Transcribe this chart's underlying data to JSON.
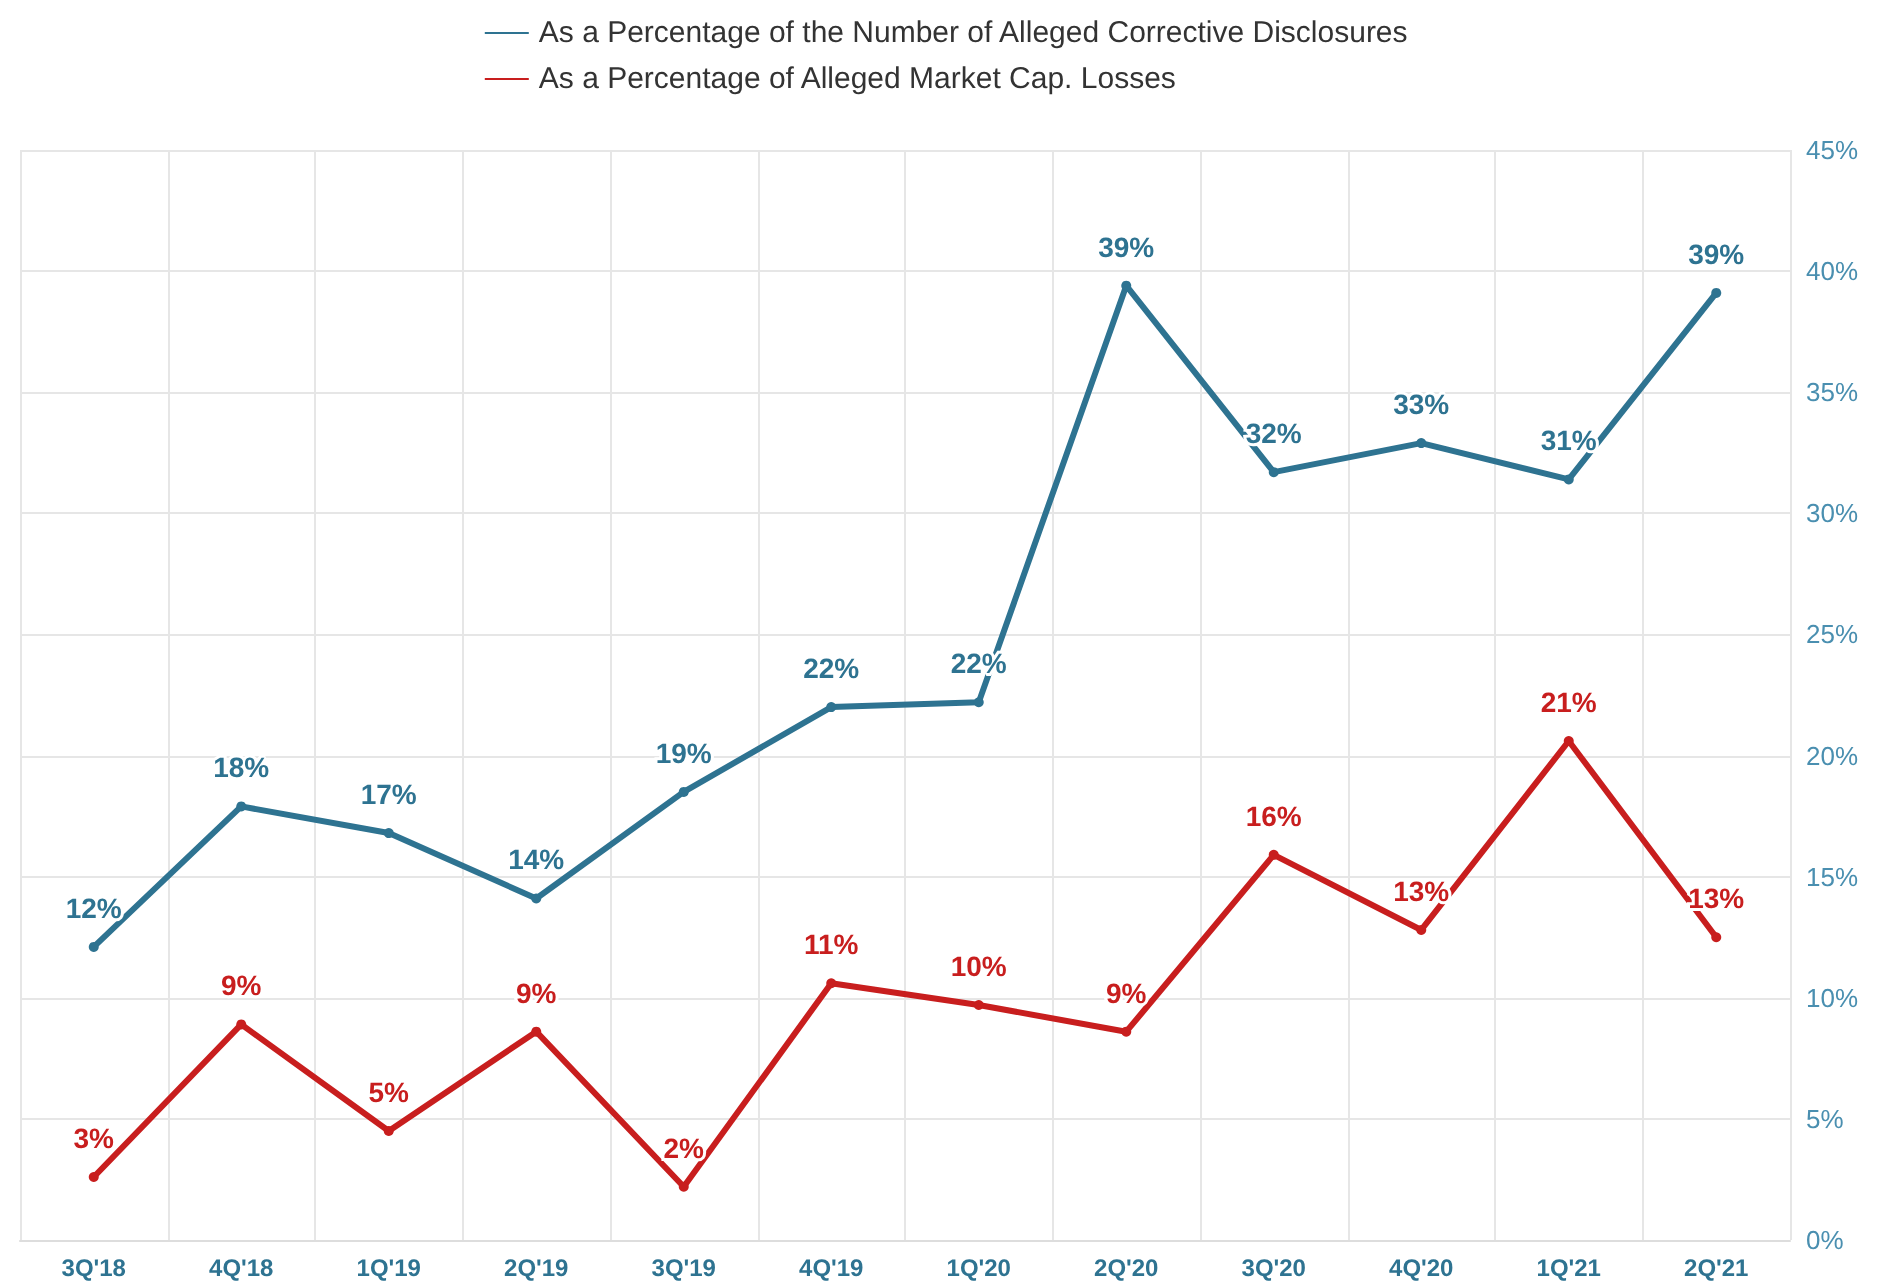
{
  "chart_data": {
    "type": "line",
    "categories": [
      "3Q'18",
      "4Q'18",
      "1Q'19",
      "2Q'19",
      "3Q'19",
      "4Q'19",
      "1Q'20",
      "2Q'20",
      "3Q'20",
      "4Q'20",
      "1Q'21",
      "2Q'21"
    ],
    "series": [
      {
        "name": "As a Percentage of the Number of Alleged Corrective Disclosures",
        "color": "#2e7391",
        "values": [
          12.1,
          17.9,
          16.8,
          14.1,
          18.5,
          22.0,
          22.2,
          39.4,
          31.7,
          32.9,
          31.4,
          39.1
        ],
        "value_labels": [
          "12%",
          "18%",
          "17%",
          "14%",
          "19%",
          "22%",
          "22%",
          "39%",
          "32%",
          "33%",
          "31%",
          "39%"
        ]
      },
      {
        "name": "As a Percentage of Alleged Market Cap. Losses",
        "color": "#c81e1e",
        "values": [
          2.6,
          8.9,
          4.5,
          8.6,
          2.2,
          10.6,
          9.7,
          8.6,
          15.9,
          12.8,
          20.6,
          12.5
        ],
        "value_labels": [
          "3%",
          "9%",
          "5%",
          "9%",
          "2%",
          "11%",
          "10%",
          "9%",
          "16%",
          "13%",
          "21%",
          "13%"
        ]
      }
    ],
    "ylim": [
      0,
      45
    ],
    "yticks": [
      {
        "value": 0,
        "label": "0%"
      },
      {
        "value": 5,
        "label": "5%"
      },
      {
        "value": 10,
        "label": "10%"
      },
      {
        "value": 15,
        "label": "15%"
      },
      {
        "value": 20,
        "label": "20%"
      },
      {
        "value": 25,
        "label": "25%"
      },
      {
        "value": 30,
        "label": "30%"
      },
      {
        "value": 35,
        "label": "35%"
      },
      {
        "value": 40,
        "label": "40%"
      },
      {
        "value": 45,
        "label": "45%"
      }
    ],
    "grid": true,
    "legend": "top",
    "marker": "circle",
    "line_style": "solid"
  }
}
